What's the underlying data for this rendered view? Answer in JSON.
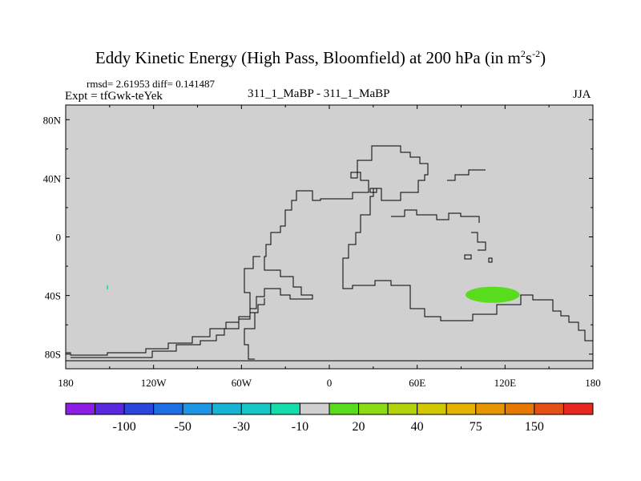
{
  "header": {
    "title_main": "Eddy Kinetic Energy (High Pass, Bloomfield) at 200 hPa (in m",
    "title_sup1": "2",
    "title_mid": "s",
    "title_sup2": "-2",
    "title_end": ")",
    "stats": "rmsd= 2.61953 diff= 0.141487",
    "expt": "Expt = tfGwk-teYek",
    "center_label": "311_1_MaBP - 311_1_MaBP",
    "season": "JJA"
  },
  "chart_data": {
    "type": "heatmap",
    "title": "Eddy Kinetic Energy (High Pass, Bloomfield) at 200 hPa (in m2s-2)",
    "x_range": [
      -180,
      180
    ],
    "y_range": [
      -90,
      90
    ],
    "x_ticks": [
      "180",
      "120W",
      "60W",
      "0",
      "60E",
      "120E",
      "180"
    ],
    "x_tick_values": [
      -180,
      -120,
      -60,
      0,
      60,
      120,
      180
    ],
    "y_ticks": [
      "80N",
      "40N",
      "0",
      "40S",
      "80S"
    ],
    "y_tick_values": [
      80,
      40,
      0,
      -40,
      -80
    ],
    "background_color": "#d0d0d0",
    "colorbar": {
      "colors": [
        "#8c1ee6",
        "#5a28e0",
        "#2a46dc",
        "#1e6ee6",
        "#1e96e6",
        "#14b4d2",
        "#14c8c8",
        "#14dcaa",
        "#d0d0d0",
        "#5adc1e",
        "#8cdc14",
        "#b4d20a",
        "#d2c800",
        "#e6b400",
        "#e69600",
        "#e67800",
        "#e65014",
        "#e6281e"
      ],
      "labels": [
        "-100",
        "-50",
        "-30",
        "-10",
        "20",
        "40",
        "75",
        "150"
      ]
    },
    "anomalies": [
      {
        "lon": [
          93,
          130
        ],
        "lat": [
          -45,
          -34
        ],
        "color": "#5adc1e"
      },
      {
        "lon": [
          -152,
          -151
        ],
        "lat": [
          -36,
          -33
        ],
        "color": "#14dcaa"
      }
    ]
  }
}
